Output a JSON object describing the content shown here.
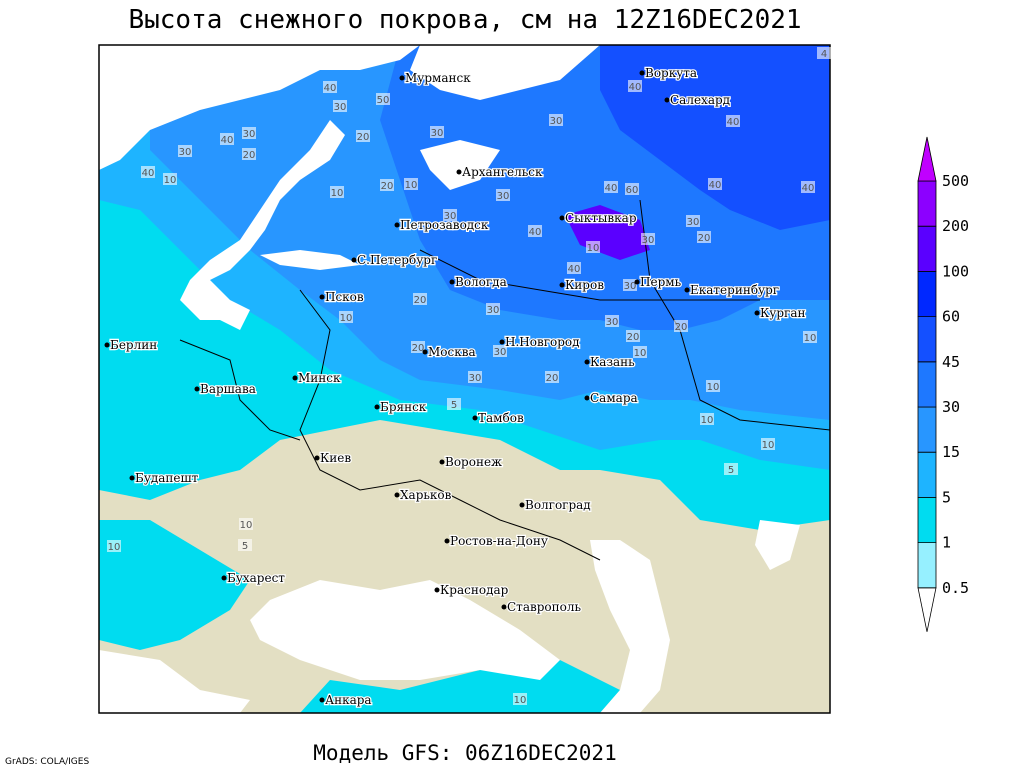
{
  "title": "Высота снежного покрова, см на 12Z16DEC2021",
  "subtitle": "Модель GFS: 06Z16DEC2021",
  "credit": "GrADS: COLA/IGES",
  "legend": {
    "levels": [
      0.5,
      1,
      5,
      15,
      30,
      45,
      60,
      100,
      200,
      500
    ],
    "colors": [
      "#ffffff",
      "#96f0ff",
      "#00dcf0",
      "#1eb4ff",
      "#2896ff",
      "#1e78ff",
      "#1450ff",
      "#0028ff",
      "#5a00ff",
      "#8c00ff",
      "#c000ff"
    ]
  },
  "cities": [
    "Мурманск",
    "Воркута",
    "Салехард",
    "Архангельск",
    "Петрозаводск",
    "Сыктывкар",
    "С.Петербург",
    "Вологда",
    "Киров",
    "Пермь",
    "Екатеринбург",
    "Курган",
    "Псков",
    "Берлин",
    "Москва",
    "Н.Новгород",
    "Казань",
    "Минск",
    "Варшава",
    "Брянск",
    "Тамбов",
    "Самара",
    "Киев",
    "Воронеж",
    "Будапешт",
    "Харьков",
    "Волгоград",
    "Ростов-на-Дону",
    "Бухарест",
    "Краснодар",
    "Ставрополь",
    "Анкара"
  ],
  "contour_labels": [
    40,
    30,
    50,
    30,
    20,
    30,
    40,
    20,
    30,
    40,
    10,
    10,
    20,
    10,
    30,
    30,
    40,
    40,
    60,
    30,
    30,
    20,
    40,
    40,
    40,
    40,
    30,
    40,
    10,
    30,
    30,
    20,
    10,
    30,
    20,
    10,
    20,
    10,
    10,
    10,
    10,
    5,
    30,
    30,
    20,
    20,
    5,
    10,
    5,
    10,
    10,
    4
  ]
}
